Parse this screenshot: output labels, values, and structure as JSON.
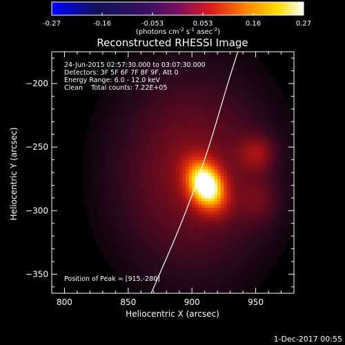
{
  "chart_data": {
    "type": "heatmap",
    "title": "Reconstructed RHESSI Image",
    "xlabel": "Heliocentric X (arcsec)",
    "ylabel": "Heliocentric Y (arcsec)",
    "xlim": [
      790,
      980
    ],
    "ylim": [
      -365,
      -175
    ],
    "xticks": [
      800,
      850,
      900,
      950
    ],
    "yticks": [
      -200,
      -250,
      -300,
      -350
    ],
    "colorbar": {
      "range": [
        -0.27,
        0.27
      ],
      "ticks": [
        "-0.27",
        "-0.16",
        "-0.053",
        "0.053",
        "0.16",
        "0.27"
      ],
      "colormap": "blue-black-purple-red-yellow-white",
      "unit_parts": [
        "(photons cm",
        "-2",
        " s",
        "-1",
        " asec",
        "-2",
        ")"
      ]
    },
    "annotations": [
      "24-Jun-2015 02:57:30.000 to 03:07:30.000",
      "Detectors: 3F 5F 6F 7F 8F 9F, Att 0",
      "Energy Range: 6.0 - 12.0 keV",
      "Clean    Total counts: 7.22E+05"
    ],
    "peak_label": "Position of Peak = [915,-280]",
    "sources": [
      {
        "x": 911,
        "y": -280,
        "amp": 0.27,
        "sx": 9,
        "sy": 13,
        "rot": 25
      },
      {
        "x": 900,
        "y": -270,
        "amp": 0.065,
        "sx": 42,
        "sy": 55,
        "rot": 0
      },
      {
        "x": 951,
        "y": -255,
        "amp": 0.055,
        "sx": 10,
        "sy": 10,
        "rot": 0
      },
      {
        "x": 952,
        "y": -292,
        "amp": 0.032,
        "sx": 11,
        "sy": 13,
        "rot": 0
      }
    ],
    "limb_curve": [
      [
        868,
        -365
      ],
      [
        892,
        -310
      ],
      [
        912,
        -255
      ],
      [
        928,
        -200
      ],
      [
        936,
        -175
      ]
    ]
  },
  "footer": {
    "date": "1-Dec-2017 00:55"
  },
  "colors": {
    "background": "#000000",
    "text": "#ffffff"
  }
}
